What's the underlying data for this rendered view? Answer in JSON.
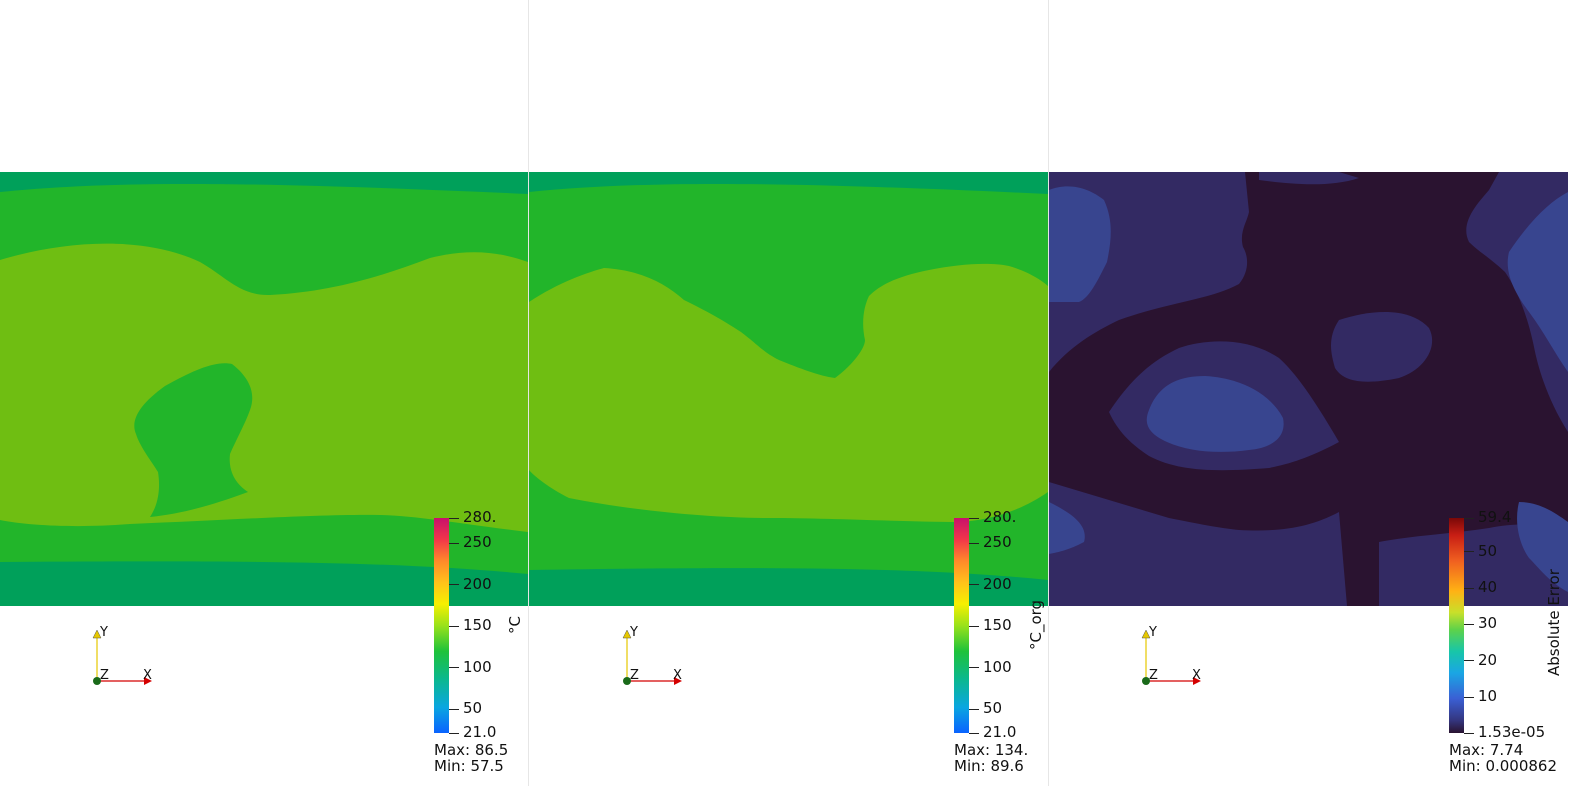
{
  "colors": {
    "level_dark": "#00a05a",
    "level_mid": "#22b52a",
    "level_light": "#6fbe12",
    "error_bg": "#2a1330",
    "error_mid": "#332a63",
    "error_light": "#38458f",
    "axis_x": "#d40000",
    "axis_y": "#e6c800",
    "axis_origin": "#1a6a1a"
  },
  "views": [
    {
      "colorbar": {
        "title": "°C",
        "colormap": "jet-like",
        "ticks": [
          "280.",
          "250",
          "200",
          "150",
          "100",
          "50",
          "21.0"
        ],
        "range": [
          21.0,
          280.0
        ]
      },
      "stats": {
        "max": "Max: 86.5",
        "min": "Min: 57.5"
      },
      "axes": {
        "y": "Y",
        "z": "Z",
        "x": "X"
      }
    },
    {
      "colorbar": {
        "title": "°C_org",
        "colormap": "jet-like",
        "ticks": [
          "280.",
          "250",
          "200",
          "150",
          "100",
          "50",
          "21.0"
        ],
        "range": [
          21.0,
          280.0
        ]
      },
      "stats": {
        "max": "Max: 134.",
        "min": "Min: 89.6"
      },
      "axes": {
        "y": "Y",
        "z": "Z",
        "x": "X"
      }
    },
    {
      "colorbar": {
        "title": "Absolute Error",
        "colormap": "turbo-like",
        "ticks": [
          "59.4",
          "50",
          "40",
          "30",
          "20",
          "10",
          "1.53e-05"
        ],
        "range": [
          1.53e-05,
          59.4
        ]
      },
      "stats": {
        "max": "Max: 7.74",
        "min": "Min: 0.000862"
      },
      "axes": {
        "y": "Y",
        "z": "Z",
        "x": "X"
      }
    }
  ]
}
